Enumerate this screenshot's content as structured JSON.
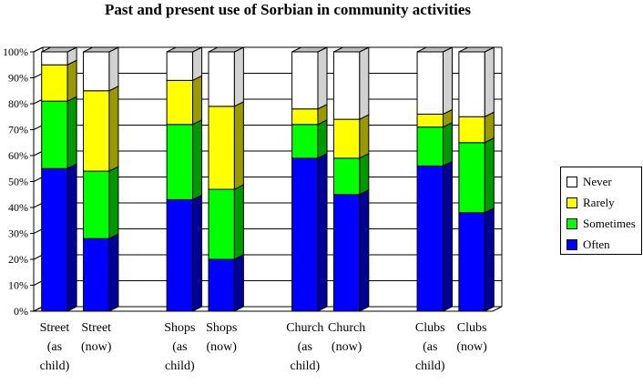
{
  "chart_data": {
    "type": "bar",
    "stacked": true,
    "percent": true,
    "title": "Past and present use of Sorbian in community activities",
    "categories": [
      [
        "Street",
        "(as",
        "child)"
      ],
      [
        "Street",
        "(now)"
      ],
      [
        ""
      ],
      [
        "Shops",
        "(as",
        "child)"
      ],
      [
        "Shops",
        "(now)"
      ],
      [
        ""
      ],
      [
        "Church",
        "(as",
        "child)"
      ],
      [
        "Church",
        "(now)"
      ],
      [
        ""
      ],
      [
        "Clubs",
        "(as",
        "child)"
      ],
      [
        "Clubs",
        "(now)"
      ]
    ],
    "series": [
      {
        "name": "Often",
        "color": "#0000ff",
        "values": [
          55,
          28,
          0,
          43,
          20,
          0,
          59,
          45,
          0,
          56,
          38
        ]
      },
      {
        "name": "Sometimes",
        "color": "#00ff00",
        "values": [
          26,
          26,
          0,
          29,
          27,
          0,
          13,
          14,
          0,
          15,
          27
        ]
      },
      {
        "name": "Rarely",
        "color": "#ffff00",
        "values": [
          14,
          31,
          0,
          17,
          32,
          0,
          6,
          15,
          0,
          5,
          10
        ]
      },
      {
        "name": "Never",
        "color": "#ffffff",
        "values": [
          5,
          15,
          0,
          11,
          21,
          0,
          22,
          26,
          0,
          24,
          25
        ]
      }
    ],
    "yticks": [
      "0%",
      "10%",
      "20%",
      "30%",
      "40%",
      "50%",
      "60%",
      "70%",
      "80%",
      "90%",
      "100%"
    ],
    "ylim": [
      0,
      100
    ],
    "grid": true,
    "legend_position": "right",
    "legend_order": [
      "Never",
      "Rarely",
      "Sometimes",
      "Often"
    ]
  }
}
